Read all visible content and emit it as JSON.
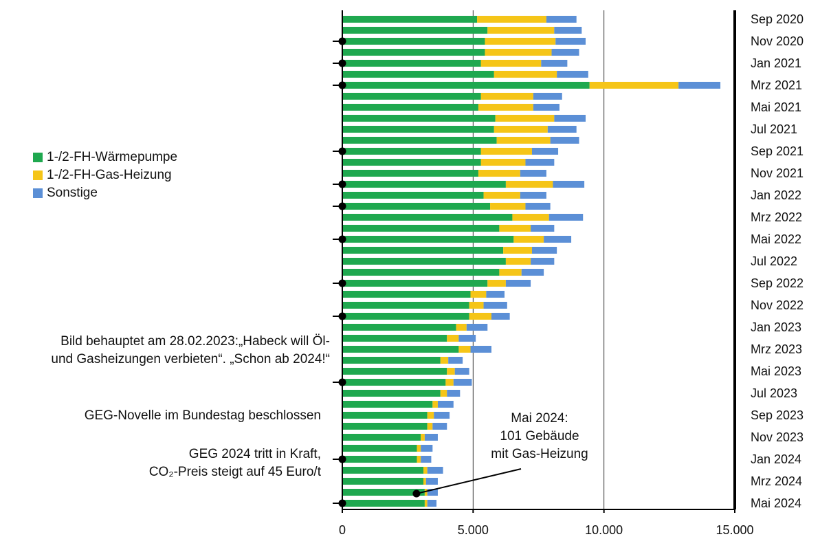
{
  "chart_data": {
    "type": "bar",
    "orientation": "horizontal",
    "stacked": true,
    "title": "",
    "xlabel": "",
    "ylabel": "",
    "xlim": [
      0,
      15000
    ],
    "x_ticks": [
      0,
      5000,
      10000,
      15000
    ],
    "x_tick_labels": [
      "0",
      "5.000",
      "10.000",
      "15.000"
    ],
    "grid": "vertical lines at 5.000 and 10.000",
    "legend_position": "left",
    "colors": {
      "waermepumpe": "#1fa84f",
      "gas": "#f5c518",
      "sonstige": "#5b8fd6"
    },
    "series": [
      {
        "name": "1-/2-FH-Wärmepumpe",
        "values": [
          5150,
          5550,
          5450,
          5450,
          5300,
          5800,
          9450,
          5300,
          5200,
          5850,
          5800,
          5900,
          5300,
          5300,
          5200,
          6250,
          5400,
          5650,
          6500,
          6000,
          6550,
          6150,
          6250,
          6000,
          5550,
          4900,
          4850,
          4850,
          4350,
          4000,
          4450,
          3750,
          4000,
          3950,
          3750,
          3450,
          3250,
          3250,
          3000,
          2850,
          2850,
          3100,
          3100,
          3150,
          3150
        ]
      },
      {
        "name": "1-/2-FH-Gas-Heizung",
        "values": [
          2650,
          2550,
          2700,
          2550,
          2300,
          2400,
          3400,
          2000,
          2100,
          2250,
          2050,
          2050,
          1950,
          1700,
          1600,
          1800,
          1400,
          1350,
          1400,
          1200,
          1150,
          1100,
          950,
          850,
          700,
          600,
          550,
          850,
          400,
          450,
          450,
          300,
          300,
          300,
          250,
          200,
          250,
          200,
          150,
          150,
          150,
          150,
          100,
          100,
          100
        ]
      },
      {
        "name": "Sonstige",
        "values": [
          1150,
          1050,
          1150,
          1050,
          1000,
          1200,
          1600,
          1100,
          1000,
          1200,
          1100,
          1100,
          1000,
          1100,
          1000,
          1200,
          1000,
          950,
          1300,
          900,
          1050,
          950,
          900,
          850,
          950,
          700,
          900,
          700,
          800,
          650,
          800,
          550,
          550,
          700,
          500,
          600,
          600,
          550,
          500,
          450,
          400,
          600,
          450,
          400,
          350
        ]
      }
    ],
    "bar_count": 45,
    "month_labels": [
      "Sep 2020",
      "Nov 2020",
      "Jan 2021",
      "Mrz 2021",
      "Mai 2021",
      "Jul 2021",
      "Sep 2021",
      "Nov 2021",
      "Jan 2022",
      "Mrz 2022",
      "Mai 2022",
      "Jul 2022",
      "Sep 2022",
      "Nov 2022",
      "Jan 2023",
      "Mrz 2023",
      "Mai 2023",
      "Jul 2023",
      "Sep 2023",
      "Nov 2023",
      "Jan 2024",
      "Mrz 2024",
      "Mai 2024"
    ],
    "event_markers": [
      {
        "bar_index": 2
      },
      {
        "bar_index": 4
      },
      {
        "bar_index": 6
      },
      {
        "bar_index": 12
      },
      {
        "bar_index": 15
      },
      {
        "bar_index": 17
      },
      {
        "bar_index": 20
      },
      {
        "bar_index": 24
      },
      {
        "bar_index": 27
      },
      {
        "bar_index": 33
      },
      {
        "bar_index": 40
      },
      {
        "bar_index": 44
      }
    ],
    "annotations": {
      "bild": {
        "lines": [
          "Bild behauptet am 28.02.2023:„Habeck will Öl-",
          "und Gasheizungen verbieten“. „Schon ab 2024!“"
        ]
      },
      "geg_novelle": {
        "lines": [
          "GEG-Novelle  im Bundestag beschlossen"
        ]
      },
      "geg_2024": {
        "lines": [
          "GEG 2024 tritt in Kraft,",
          "CO₂-Preis steigt auf 45 Euro/t"
        ]
      },
      "mai_2024": {
        "lines": [
          "Mai 2024:",
          "101 Gebäude",
          "mit Gas-Heizung"
        ]
      }
    }
  }
}
